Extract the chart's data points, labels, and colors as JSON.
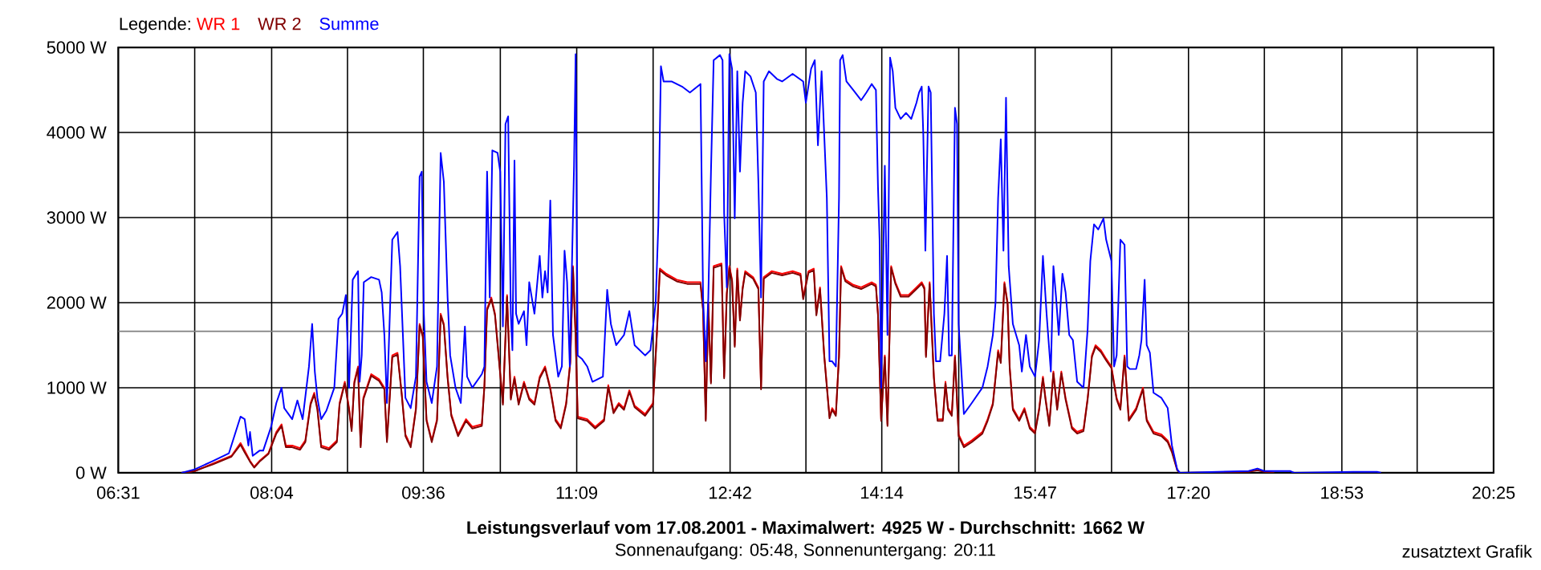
{
  "chart_data": {
    "type": "line",
    "title": "Leistungsverlauf vom 17.08.2001 - Maximalwert: 4925 W - Durchschnitt: 1662 W",
    "subtitle": "Sonnenaufgang: 05:48, Sonnenuntergang: 20:11",
    "annotations": [
      "zusatztext Grafik"
    ],
    "legend_title": "Legende:",
    "legend": "top left",
    "grid": true,
    "xlim": [
      6.5167,
      20.4167
    ],
    "ylim": [
      0,
      5000
    ],
    "xticks": [
      {
        "value": 6.5167,
        "label": "06:31"
      },
      {
        "value": 7.2889,
        "label": null
      },
      {
        "value": 8.0667,
        "label": "08:04"
      },
      {
        "value": 8.8333,
        "label": null
      },
      {
        "value": 9.6,
        "label": "09:36"
      },
      {
        "value": 10.3778,
        "label": null
      },
      {
        "value": 11.15,
        "label": "11:09"
      },
      {
        "value": 11.9222,
        "label": null
      },
      {
        "value": 12.7,
        "label": "12:42"
      },
      {
        "value": 13.4667,
        "label": null
      },
      {
        "value": 14.2333,
        "label": "14:14"
      },
      {
        "value": 15.0111,
        "label": null
      },
      {
        "value": 15.7833,
        "label": "15:47"
      },
      {
        "value": 16.5556,
        "label": null
      },
      {
        "value": 17.3333,
        "label": "17:20"
      },
      {
        "value": 18.1,
        "label": null
      },
      {
        "value": 18.8833,
        "label": "18:53"
      },
      {
        "value": 19.6444,
        "label": null
      },
      {
        "value": 20.4167,
        "label": "20:25"
      }
    ],
    "yticks": [
      {
        "value": 0,
        "label": "0 W"
      },
      {
        "value": 1000,
        "label": "1000 W"
      },
      {
        "value": 2000,
        "label": "2000 W"
      },
      {
        "value": 3000,
        "label": "3000 W"
      },
      {
        "value": 4000,
        "label": "4000 W"
      },
      {
        "value": 5000,
        "label": "5000 W"
      }
    ],
    "ref_lines": [
      {
        "axis": "y",
        "value": 1662,
        "color": "#808080"
      }
    ],
    "series": [
      {
        "name": "WR 1",
        "color": "#ff0000",
        "x": [
          7.156,
          7.289,
          7.475,
          7.661,
          7.752,
          7.794,
          7.848,
          7.89,
          7.944,
          8.034,
          8.114,
          8.167,
          8.21,
          8.274,
          8.354,
          8.407,
          8.46,
          8.497,
          8.529,
          8.567,
          8.646,
          8.726,
          8.753,
          8.806,
          8.849,
          8.875,
          8.902,
          8.94,
          8.966,
          8.993,
          9.073,
          9.152,
          9.206,
          9.232,
          9.286,
          9.339,
          9.381,
          9.419,
          9.472,
          9.525,
          9.562,
          9.594,
          9.632,
          9.685,
          9.738,
          9.775,
          9.807,
          9.845,
          9.882,
          9.951,
          10.031,
          10.095,
          10.191,
          10.217,
          10.244,
          10.287,
          10.324,
          10.361,
          10.404,
          10.446,
          10.484,
          10.521,
          10.563,
          10.617,
          10.67,
          10.723,
          10.776,
          10.83,
          10.883,
          10.936,
          10.989,
          11.043,
          11.085,
          11.112,
          11.139,
          11.16,
          11.256,
          11.336,
          11.426,
          11.469,
          11.522,
          11.575,
          11.628,
          11.682,
          11.735,
          11.841,
          11.921,
          11.959,
          11.99,
          12.054,
          12.161,
          12.267,
          12.401,
          12.427,
          12.454,
          12.48,
          12.507,
          12.534,
          12.614,
          12.64,
          12.667,
          12.693,
          12.72,
          12.747,
          12.773,
          12.8,
          12.827,
          12.853,
          12.933,
          12.986,
          13.013,
          13.04,
          13.12,
          13.226,
          13.332,
          13.412,
          13.439,
          13.492,
          13.546,
          13.572,
          13.609,
          13.652,
          13.705,
          13.732,
          13.769,
          13.801,
          13.822,
          13.865,
          13.945,
          14.025,
          14.131,
          14.174,
          14.195,
          14.227,
          14.264,
          14.291,
          14.328,
          14.371,
          14.424,
          14.504,
          14.584,
          14.637,
          14.664,
          14.68,
          14.717,
          14.76,
          14.797,
          14.85,
          14.877,
          14.903,
          14.941,
          14.973,
          15.01,
          15.063,
          15.143,
          15.25,
          15.303,
          15.356,
          15.383,
          15.409,
          15.436,
          15.473,
          15.505,
          15.526,
          15.558,
          15.622,
          15.675,
          15.729,
          15.782,
          15.824,
          15.862,
          15.888,
          15.926,
          15.968,
          16.006,
          16.048,
          16.091,
          16.155,
          16.208,
          16.272,
          16.314,
          16.357,
          16.394,
          16.448,
          16.501,
          16.554,
          16.607,
          16.645,
          16.687,
          16.73,
          16.804,
          16.873,
          16.911,
          16.98,
          17.06,
          17.123,
          17.166,
          17.219
        ],
        "values": [
          0,
          20,
          110,
          200,
          350,
          260,
          140,
          70,
          140,
          230,
          480,
          570,
          320,
          320,
          290,
          380,
          820,
          940,
          760,
          320,
          290,
          380,
          820,
          1070,
          760,
          510,
          1070,
          1250,
          320,
          880,
          1160,
          1100,
          1000,
          380,
          1380,
          1410,
          940,
          450,
          320,
          760,
          1750,
          1620,
          630,
          380,
          630,
          1870,
          1750,
          1130,
          690,
          450,
          630,
          540,
          570,
          1030,
          1930,
          2060,
          1870,
          1380,
          820,
          2090,
          880,
          1130,
          820,
          1070,
          880,
          820,
          1130,
          1250,
          1000,
          630,
          540,
          820,
          1310,
          2430,
          1620,
          660,
          630,
          540,
          630,
          1030,
          720,
          820,
          760,
          970,
          790,
          690,
          820,
          1620,
          2400,
          2340,
          2270,
          2240,
          2240,
          1930,
          630,
          2000,
          1070,
          2430,
          2460,
          1130,
          2120,
          2430,
          2270,
          1500,
          2400,
          1810,
          2180,
          2370,
          2300,
          2180,
          1000,
          2300,
          2370,
          2340,
          2370,
          2340,
          2060,
          2370,
          2400,
          1870,
          2180,
          1380,
          660,
          760,
          690,
          1380,
          2430,
          2270,
          2210,
          2180,
          2240,
          2210,
          1870,
          630,
          1380,
          570,
          2430,
          2240,
          2090,
          2090,
          2180,
          2240,
          2180,
          1380,
          2240,
          1130,
          630,
          630,
          1070,
          760,
          690,
          1380,
          450,
          320,
          380,
          480,
          630,
          820,
          1130,
          1440,
          1310,
          2240,
          2000,
          1250,
          760,
          630,
          760,
          540,
          480,
          760,
          1130,
          880,
          570,
          1190,
          760,
          1190,
          880,
          540,
          480,
          510,
          880,
          1380,
          1500,
          1440,
          1340,
          1250,
          880,
          760,
          1380,
          630,
          760,
          1000,
          630,
          480,
          450,
          380,
          260,
          40
        ]
      },
      {
        "name": "WR 2",
        "color": "#800000",
        "x": [
          7.156,
          7.289,
          7.475,
          7.661,
          7.752,
          7.794,
          7.848,
          7.89,
          7.944,
          8.034,
          8.114,
          8.167,
          8.21,
          8.274,
          8.354,
          8.407,
          8.46,
          8.497,
          8.529,
          8.567,
          8.646,
          8.726,
          8.753,
          8.806,
          8.849,
          8.875,
          8.902,
          8.94,
          8.966,
          8.993,
          9.073,
          9.152,
          9.206,
          9.232,
          9.286,
          9.339,
          9.381,
          9.419,
          9.472,
          9.525,
          9.562,
          9.594,
          9.632,
          9.685,
          9.738,
          9.775,
          9.807,
          9.845,
          9.882,
          9.951,
          10.031,
          10.095,
          10.191,
          10.217,
          10.244,
          10.287,
          10.324,
          10.361,
          10.404,
          10.446,
          10.484,
          10.521,
          10.563,
          10.617,
          10.67,
          10.723,
          10.776,
          10.83,
          10.883,
          10.936,
          10.989,
          11.043,
          11.085,
          11.112,
          11.139,
          11.16,
          11.256,
          11.336,
          11.426,
          11.469,
          11.522,
          11.575,
          11.628,
          11.682,
          11.735,
          11.841,
          11.921,
          11.959,
          11.99,
          12.054,
          12.161,
          12.267,
          12.401,
          12.427,
          12.454,
          12.48,
          12.507,
          12.534,
          12.614,
          12.64,
          12.667,
          12.693,
          12.72,
          12.747,
          12.773,
          12.8,
          12.827,
          12.853,
          12.933,
          12.986,
          13.013,
          13.04,
          13.12,
          13.226,
          13.332,
          13.412,
          13.439,
          13.492,
          13.546,
          13.572,
          13.609,
          13.652,
          13.705,
          13.732,
          13.769,
          13.801,
          13.822,
          13.865,
          13.945,
          14.025,
          14.131,
          14.174,
          14.195,
          14.227,
          14.264,
          14.291,
          14.328,
          14.371,
          14.424,
          14.504,
          14.584,
          14.637,
          14.664,
          14.68,
          14.717,
          14.76,
          14.797,
          14.85,
          14.877,
          14.903,
          14.941,
          14.973,
          15.01,
          15.063,
          15.143,
          15.25,
          15.303,
          15.356,
          15.383,
          15.409,
          15.436,
          15.473,
          15.505,
          15.526,
          15.558,
          15.622,
          15.675,
          15.729,
          15.782,
          15.824,
          15.862,
          15.888,
          15.926,
          15.968,
          16.006,
          16.048,
          16.091,
          16.155,
          16.208,
          16.272,
          16.314,
          16.357,
          16.394,
          16.448,
          16.501,
          16.554,
          16.607,
          16.645,
          16.687,
          16.73,
          16.804,
          16.873,
          16.911,
          16.98,
          17.06,
          17.123,
          17.166,
          17.219,
          17.246,
          17.94,
          18.03,
          18.1,
          18.2
        ],
        "values": [
          0,
          20,
          100,
          190,
          330,
          240,
          130,
          60,
          130,
          220,
          460,
          550,
          300,
          300,
          270,
          360,
          800,
          920,
          740,
          300,
          270,
          360,
          800,
          1050,
          740,
          490,
          1050,
          1230,
          300,
          860,
          1140,
          1080,
          980,
          360,
          1360,
          1390,
          920,
          430,
          300,
          740,
          1730,
          1600,
          610,
          360,
          610,
          1850,
          1730,
          1110,
          670,
          430,
          610,
          520,
          550,
          1010,
          1910,
          2040,
          1850,
          1360,
          800,
          2070,
          860,
          1110,
          800,
          1050,
          860,
          800,
          1110,
          1230,
          980,
          610,
          520,
          800,
          1290,
          2410,
          1600,
          640,
          610,
          520,
          610,
          1010,
          700,
          800,
          740,
          950,
          770,
          670,
          800,
          1600,
          2380,
          2320,
          2250,
          2220,
          2220,
          1910,
          610,
          1980,
          1050,
          2410,
          2440,
          1110,
          2100,
          2410,
          2250,
          1480,
          2380,
          1790,
          2160,
          2350,
          2280,
          2160,
          980,
          2280,
          2350,
          2320,
          2350,
          2320,
          2040,
          2350,
          2380,
          1850,
          2160,
          1360,
          640,
          740,
          670,
          1360,
          2410,
          2250,
          2190,
          2160,
          2220,
          2190,
          1850,
          610,
          1360,
          550,
          2410,
          2220,
          2070,
          2070,
          2160,
          2220,
          2160,
          1360,
          2220,
          1110,
          610,
          610,
          1050,
          740,
          670,
          1360,
          430,
          300,
          360,
          460,
          610,
          800,
          1110,
          1420,
          1290,
          2220,
          1980,
          1230,
          740,
          610,
          740,
          520,
          460,
          740,
          1110,
          860,
          550,
          1170,
          740,
          1170,
          860,
          520,
          460,
          490,
          860,
          1360,
          1480,
          1420,
          1320,
          1230,
          860,
          740,
          1360,
          610,
          740,
          980,
          610,
          460,
          430,
          360,
          240,
          30,
          0,
          10,
          30,
          10,
          0
        ]
      },
      {
        "name": "Summe",
        "color": "#0000ff",
        "x": [
          7.156,
          7.289,
          7.475,
          7.635,
          7.752,
          7.794,
          7.832,
          7.848,
          7.875,
          7.944,
          7.981,
          8.061,
          8.114,
          8.167,
          8.194,
          8.274,
          8.327,
          8.38,
          8.444,
          8.476,
          8.503,
          8.529,
          8.567,
          8.62,
          8.7,
          8.742,
          8.78,
          8.817,
          8.849,
          8.886,
          8.94,
          8.956,
          8.977,
          8.998,
          9.073,
          9.152,
          9.179,
          9.206,
          9.232,
          9.286,
          9.339,
          9.365,
          9.419,
          9.472,
          9.525,
          9.562,
          9.584,
          9.605,
          9.632,
          9.685,
          9.738,
          9.775,
          9.807,
          9.845,
          9.871,
          9.925,
          9.978,
          10.02,
          10.042,
          10.095,
          10.191,
          10.217,
          10.244,
          10.271,
          10.297,
          10.35,
          10.377,
          10.404,
          10.43,
          10.457,
          10.484,
          10.5,
          10.521,
          10.537,
          10.563,
          10.617,
          10.643,
          10.67,
          10.723,
          10.776,
          10.803,
          10.83,
          10.856,
          10.883,
          10.91,
          10.963,
          11.0,
          11.027,
          11.053,
          11.08,
          11.123,
          11.139,
          11.149,
          11.16,
          11.202,
          11.256,
          11.309,
          11.415,
          11.458,
          11.495,
          11.549,
          11.628,
          11.682,
          11.735,
          11.841,
          11.895,
          11.948,
          11.975,
          12.001,
          12.028,
          12.108,
          12.214,
          12.294,
          12.401,
          12.427,
          12.454,
          12.48,
          12.507,
          12.534,
          12.598,
          12.624,
          12.64,
          12.667,
          12.693,
          12.72,
          12.747,
          12.773,
          12.8,
          12.827,
          12.853,
          12.906,
          12.96,
          12.986,
          13.013,
          13.04,
          13.093,
          13.173,
          13.226,
          13.332,
          13.439,
          13.466,
          13.519,
          13.556,
          13.588,
          13.625,
          13.678,
          13.705,
          13.732,
          13.769,
          13.801,
          13.812,
          13.838,
          13.876,
          13.945,
          14.025,
          14.078,
          14.131,
          14.174,
          14.195,
          14.211,
          14.227,
          14.264,
          14.291,
          14.317,
          14.344,
          14.371,
          14.424,
          14.478,
          14.531,
          14.584,
          14.61,
          14.637,
          14.653,
          14.674,
          14.706,
          14.728,
          14.76,
          14.781,
          14.823,
          14.866,
          14.893,
          14.914,
          14.941,
          14.973,
          14.994,
          15.01,
          15.063,
          15.143,
          15.25,
          15.303,
          15.356,
          15.383,
          15.409,
          15.436,
          15.463,
          15.489,
          15.516,
          15.558,
          15.622,
          15.649,
          15.691,
          15.729,
          15.782,
          15.824,
          15.862,
          15.899,
          15.942,
          15.968,
          15.995,
          16.022,
          16.059,
          16.091,
          16.128,
          16.165,
          16.208,
          16.272,
          16.314,
          16.341,
          16.378,
          16.421,
          16.474,
          16.501,
          16.554,
          16.581,
          16.607,
          16.645,
          16.687,
          16.714,
          16.74,
          16.804,
          16.836,
          16.858,
          16.89,
          16.911,
          16.943,
          16.98,
          17.06,
          17.123,
          17.166,
          17.219,
          17.246,
          17.94,
          18.03,
          18.1,
          18.36,
          18.4,
          19.0,
          19.24,
          19.28
        ],
        "values": [
          0,
          40,
          140,
          230,
          660,
          630,
          320,
          480,
          200,
          260,
          260,
          540,
          820,
          1000,
          760,
          630,
          850,
          630,
          1250,
          1750,
          1190,
          880,
          630,
          730,
          1000,
          1810,
          1870,
          2090,
          1000,
          2270,
          2370,
          1070,
          1380,
          2240,
          2300,
          2270,
          2120,
          1620,
          820,
          2740,
          2830,
          2430,
          880,
          760,
          1130,
          3480,
          3540,
          1870,
          1070,
          820,
          1250,
          3760,
          3420,
          2060,
          1380,
          1000,
          820,
          1720,
          1130,
          1000,
          1160,
          1250,
          3540,
          2060,
          3790,
          3760,
          3540,
          1720,
          4100,
          4190,
          1870,
          1440,
          3670,
          1870,
          1750,
          1900,
          1500,
          2240,
          1870,
          2550,
          2060,
          2370,
          2120,
          3200,
          1620,
          1130,
          1250,
          2610,
          2240,
          1250,
          3610,
          4920,
          3230,
          1380,
          1340,
          1250,
          1070,
          1130,
          2150,
          1750,
          1500,
          1620,
          1900,
          1500,
          1380,
          1440,
          2000,
          2920,
          4780,
          4600,
          4600,
          4540,
          4470,
          4570,
          2060,
          1310,
          2060,
          3540,
          4850,
          4910,
          4850,
          3050,
          2180,
          4920,
          4750,
          2990,
          4720,
          3540,
          4350,
          4720,
          4660,
          4470,
          3420,
          2060,
          4600,
          4720,
          4630,
          4600,
          4690,
          4600,
          4350,
          4750,
          4850,
          3850,
          4720,
          3230,
          1310,
          1310,
          1250,
          3230,
          4850,
          4910,
          4600,
          4500,
          4380,
          4470,
          4570,
          4500,
          3360,
          2740,
          1000,
          3610,
          1620,
          4880,
          4720,
          4290,
          4160,
          4230,
          4160,
          4350,
          4470,
          4540,
          3980,
          2610,
          4540,
          4470,
          1870,
          1310,
          1310,
          1870,
          2550,
          1380,
          1380,
          4290,
          4100,
          1750,
          690,
          820,
          1000,
          1250,
          1620,
          2000,
          3230,
          3920,
          2610,
          4410,
          2430,
          1750,
          1500,
          1190,
          1620,
          1250,
          1130,
          1560,
          2550,
          1870,
          1190,
          2430,
          2060,
          1620,
          2340,
          2120,
          1620,
          1560,
          1070,
          1000,
          1690,
          2490,
          2920,
          2860,
          2990,
          2740,
          2490,
          1250,
          1380,
          2740,
          2680,
          1250,
          1220,
          1220,
          1380,
          1560,
          2270,
          1500,
          1410,
          940,
          880,
          760,
          320,
          40,
          0,
          20,
          50,
          20,
          20,
          0,
          10,
          10,
          0
        ]
      }
    ]
  }
}
